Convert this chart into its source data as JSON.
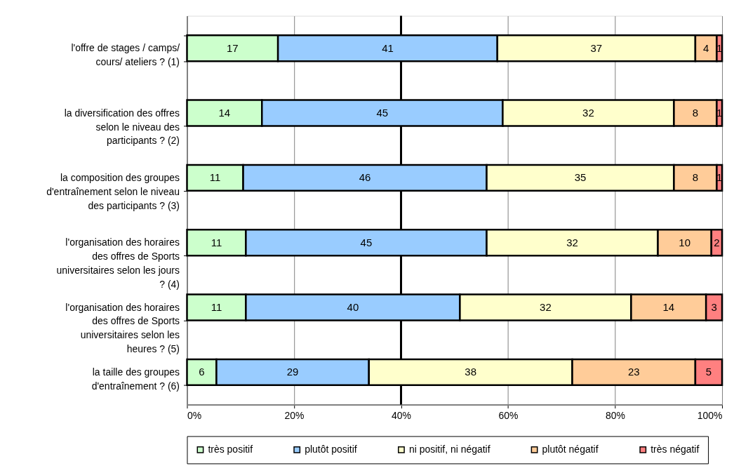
{
  "chart_data": {
    "type": "bar",
    "orientation": "horizontal",
    "stacked": true,
    "categories": [
      "l'offre de stages / camps/ cours/ ateliers ? (1)",
      "la diversification des offres selon le niveau des participants ? (2)",
      "la composition des groupes d'entraînement selon le niveau des participants ? (3)",
      "l'organisation des horaires des offres de Sports universitaires selon les jours ? (4)",
      "l'organisation des horaires des offres de Sports universitaires selon les heures ? (5)",
      "la taille des groupes d'entraînement ? (6)"
    ],
    "series": [
      {
        "name": "très positif",
        "color": "#ccffcc",
        "values": [
          17,
          14,
          10.5,
          11,
          11,
          5.5
        ],
        "value_labels": [
          "17",
          "14",
          "11",
          "11",
          "11",
          "6"
        ]
      },
      {
        "name": "plutôt positif",
        "color": "#99ccff",
        "values": [
          41,
          45,
          45.5,
          45,
          40,
          28.5
        ],
        "value_labels": [
          "41",
          "45",
          "46",
          "45",
          "40",
          "29"
        ]
      },
      {
        "name": "ni positif, ni négatif",
        "color": "#ffffcc",
        "values": [
          37,
          32,
          35,
          32,
          32,
          38
        ],
        "value_labels": [
          "37",
          "32",
          "35",
          "32",
          "32",
          "38"
        ]
      },
      {
        "name": "plutôt négatif",
        "color": "#ffcc99",
        "values": [
          4,
          8,
          8,
          10,
          14,
          23
        ],
        "value_labels": [
          "4",
          "8",
          "8",
          "10",
          "14",
          "23"
        ]
      },
      {
        "name": "très négatif",
        "color": "#ff8080",
        "values": [
          1,
          1,
          1,
          2,
          3,
          5
        ],
        "value_labels": [
          "1",
          "1",
          "1",
          "2",
          "3",
          "5"
        ]
      }
    ],
    "xlim": [
      0,
      100
    ],
    "xticks": [
      {
        "value": 0,
        "label": "0%"
      },
      {
        "value": 20,
        "label": "20%"
      },
      {
        "value": 40,
        "label": "40%"
      },
      {
        "value": 60,
        "label": "60%"
      },
      {
        "value": 80,
        "label": "80%"
      },
      {
        "value": 100,
        "label": "100%"
      }
    ],
    "grid": "x",
    "legend": "bottom",
    "ref_lines": [
      {
        "axis": "x",
        "value": 40,
        "color": "#000000"
      }
    ]
  }
}
